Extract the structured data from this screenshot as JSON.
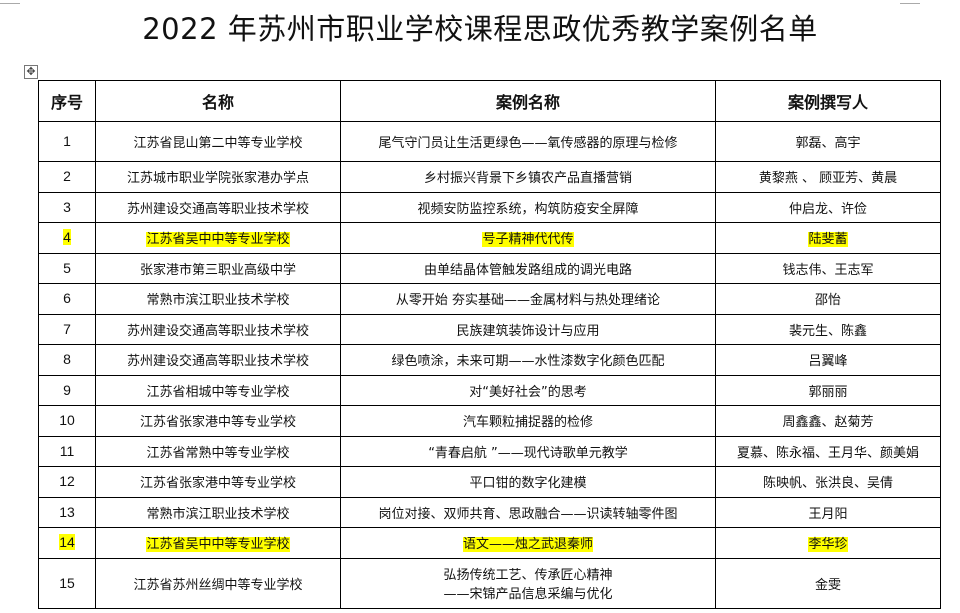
{
  "title": "2022 年苏州市职业学校课程思政优秀教学案例名单",
  "columns": [
    "序号",
    "名称",
    "案例名称",
    "案例撰写人"
  ],
  "highlight_color": "#ffff00",
  "rows": [
    {
      "no": "1",
      "school": "江苏省昆山第二中等专业学校",
      "case": "尾气守门员让生活更绿色——氧传感器的原理与检修",
      "authors": "郭磊、高宇",
      "highlight": false
    },
    {
      "no": "2",
      "school": "江苏城市职业学院张家港办学点",
      "case": "乡村振兴背景下乡镇农产品直播营销",
      "authors": "黄黎燕 、 顾亚芳、黄晨",
      "highlight": false
    },
    {
      "no": "3",
      "school": "苏州建设交通高等职业技术学校",
      "case": "视频安防监控系统，构筑防疫安全屏障",
      "authors": "仲启龙、许俭",
      "highlight": false
    },
    {
      "no": "4",
      "school": "江苏省吴中中等专业学校",
      "case": "号子精神代代传",
      "authors": "陆斐蓄",
      "highlight": true
    },
    {
      "no": "5",
      "school": "张家港市第三职业高级中学",
      "case": "由单结晶体管触发路组成的调光电路",
      "authors": "钱志伟、王志军",
      "highlight": false
    },
    {
      "no": "6",
      "school": "常熟市滨江职业技术学校",
      "case": "从零开始 夯实基础——金属材料与热处理绪论",
      "authors": "邵怡",
      "highlight": false
    },
    {
      "no": "7",
      "school": "苏州建设交通高等职业技术学校",
      "case": "民族建筑装饰设计与应用",
      "authors": "裴元生、陈鑫",
      "highlight": false
    },
    {
      "no": "8",
      "school": "苏州建设交通高等职业技术学校",
      "case": "绿色喷涂，未来可期——水性漆数字化颜色匹配",
      "authors": "吕翼峰",
      "highlight": false
    },
    {
      "no": "9",
      "school": "江苏省相城中等专业学校",
      "case": "对“美好社会”的思考",
      "authors": "郭丽丽",
      "highlight": false
    },
    {
      "no": "10",
      "school": "江苏省张家港中等专业学校",
      "case": "汽车颗粒捕捉器的检修",
      "authors": "周鑫鑫、赵菊芳",
      "highlight": false
    },
    {
      "no": "11",
      "school": "江苏省常熟中等专业学校",
      "case": "“青春启航 ”——现代诗歌单元教学",
      "authors": "夏慕、陈永福、王月华、颜美娟",
      "highlight": false
    },
    {
      "no": "12",
      "school": "江苏省张家港中等专业学校",
      "case": "平口钳的数字化建模",
      "authors": "陈映帆、张洪良、吴倩",
      "highlight": false
    },
    {
      "no": "13",
      "school": "常熟市滨江职业技术学校",
      "case": "岗位对接、双师共育、思政融合——识读转轴零件图",
      "authors": "王月阳",
      "highlight": false
    },
    {
      "no": "14",
      "school": "江苏省吴中中等专业学校",
      "case": "语文——烛之武退秦师",
      "authors": "李华珍",
      "highlight": true
    },
    {
      "no": "15",
      "school": "江苏省苏州丝绸中等专业学校",
      "case": "弘扬传统工艺、传承匠心精神\n——宋锦产品信息采编与优化",
      "authors": "金雯",
      "highlight": false
    }
  ]
}
